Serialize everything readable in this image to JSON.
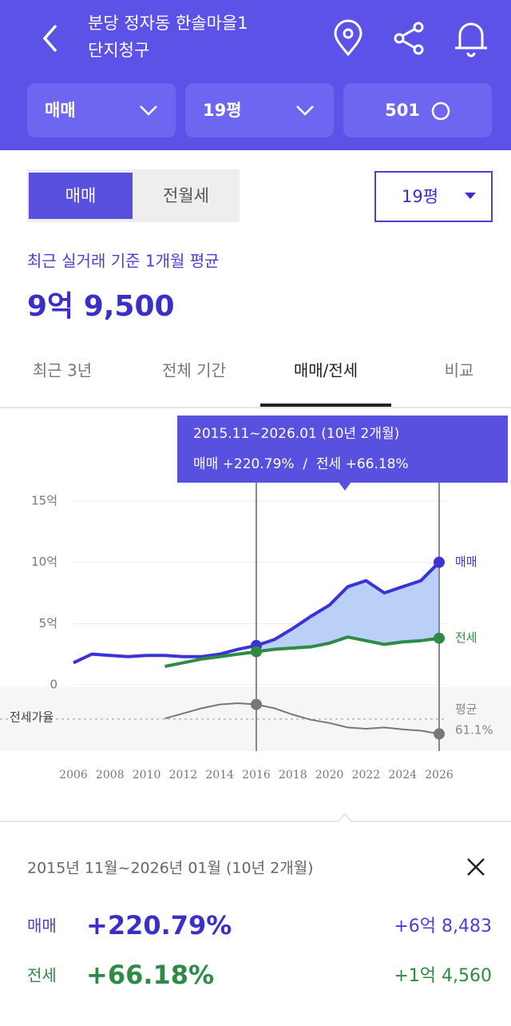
{
  "header": {
    "title_lines": [
      "분당 정자동 한솔마을1",
      "단지청구"
    ],
    "filters": [
      "매매",
      "19평",
      "501"
    ]
  },
  "controls": {
    "toggle": [
      "매매",
      "전월세"
    ],
    "size_select": "19평"
  },
  "price": {
    "caption": "최근 실거래 기준 1개월 평균",
    "value": "9억 9,500"
  },
  "tabs": [
    "최근 3년",
    "전체 기간",
    "매매/전세",
    "비교"
  ],
  "chart_data": {
    "type": "line",
    "tooltip": [
      "2015.11~2026.01 (10년 2개월)",
      "매매 +220.79%  /  전세 +66.18%"
    ],
    "x": [
      2006,
      2007,
      2008,
      2009,
      2010,
      2011,
      2012,
      2013,
      2014,
      2015,
      2016,
      2017,
      2018,
      2019,
      2020,
      2021,
      2022,
      2023,
      2024,
      2025,
      2026
    ],
    "series": [
      {
        "name": "매매",
        "color": "#3b33d6",
        "values": [
          1.8,
          2.5,
          2.4,
          2.3,
          2.4,
          2.4,
          2.3,
          2.3,
          2.5,
          2.9,
          3.2,
          3.7,
          4.6,
          5.6,
          6.5,
          8.0,
          8.5,
          7.5,
          8.0,
          8.5,
          10.0
        ]
      },
      {
        "name": "전세",
        "color": "#2e8b45",
        "values": [
          null,
          null,
          null,
          null,
          null,
          1.5,
          1.8,
          2.1,
          2.3,
          2.5,
          2.7,
          2.9,
          3.0,
          3.1,
          3.4,
          3.9,
          3.6,
          3.3,
          3.5,
          3.6,
          3.8
        ]
      }
    ],
    "area_color": "#a9c4f5",
    "xlim": [
      2006,
      2026
    ],
    "xticks": [
      2006,
      2008,
      2010,
      2012,
      2014,
      2016,
      2018,
      2020,
      2022,
      2024,
      2026
    ],
    "ylim": [
      0,
      15
    ],
    "yticks": [
      0,
      {
        "value": 5,
        "label": "5억"
      },
      {
        "value": 10,
        "label": "10억"
      },
      {
        "value": 15,
        "label": "15억"
      }
    ],
    "highlight_x": [
      2016,
      2026
    ],
    "ratio": {
      "name": "전세가율",
      "color": "#777777",
      "ylim": [
        11,
        111
      ],
      "average": 61.1,
      "average_caption": "평균",
      "average_label": "61.1%",
      "values": [
        null,
        null,
        null,
        null,
        null,
        62,
        70,
        78,
        84,
        86,
        84,
        78,
        68,
        60,
        55,
        48,
        46,
        48,
        45,
        43,
        38
      ]
    }
  },
  "summary": {
    "period": "2015년 11월~2026년 01월 (10년 2개월)",
    "rows": [
      {
        "name": "매매",
        "change": "+220.79%",
        "amount": "+6억 8,483"
      },
      {
        "name": "전세",
        "change": "+66.18%",
        "amount": "+1억 4,560"
      }
    ]
  }
}
